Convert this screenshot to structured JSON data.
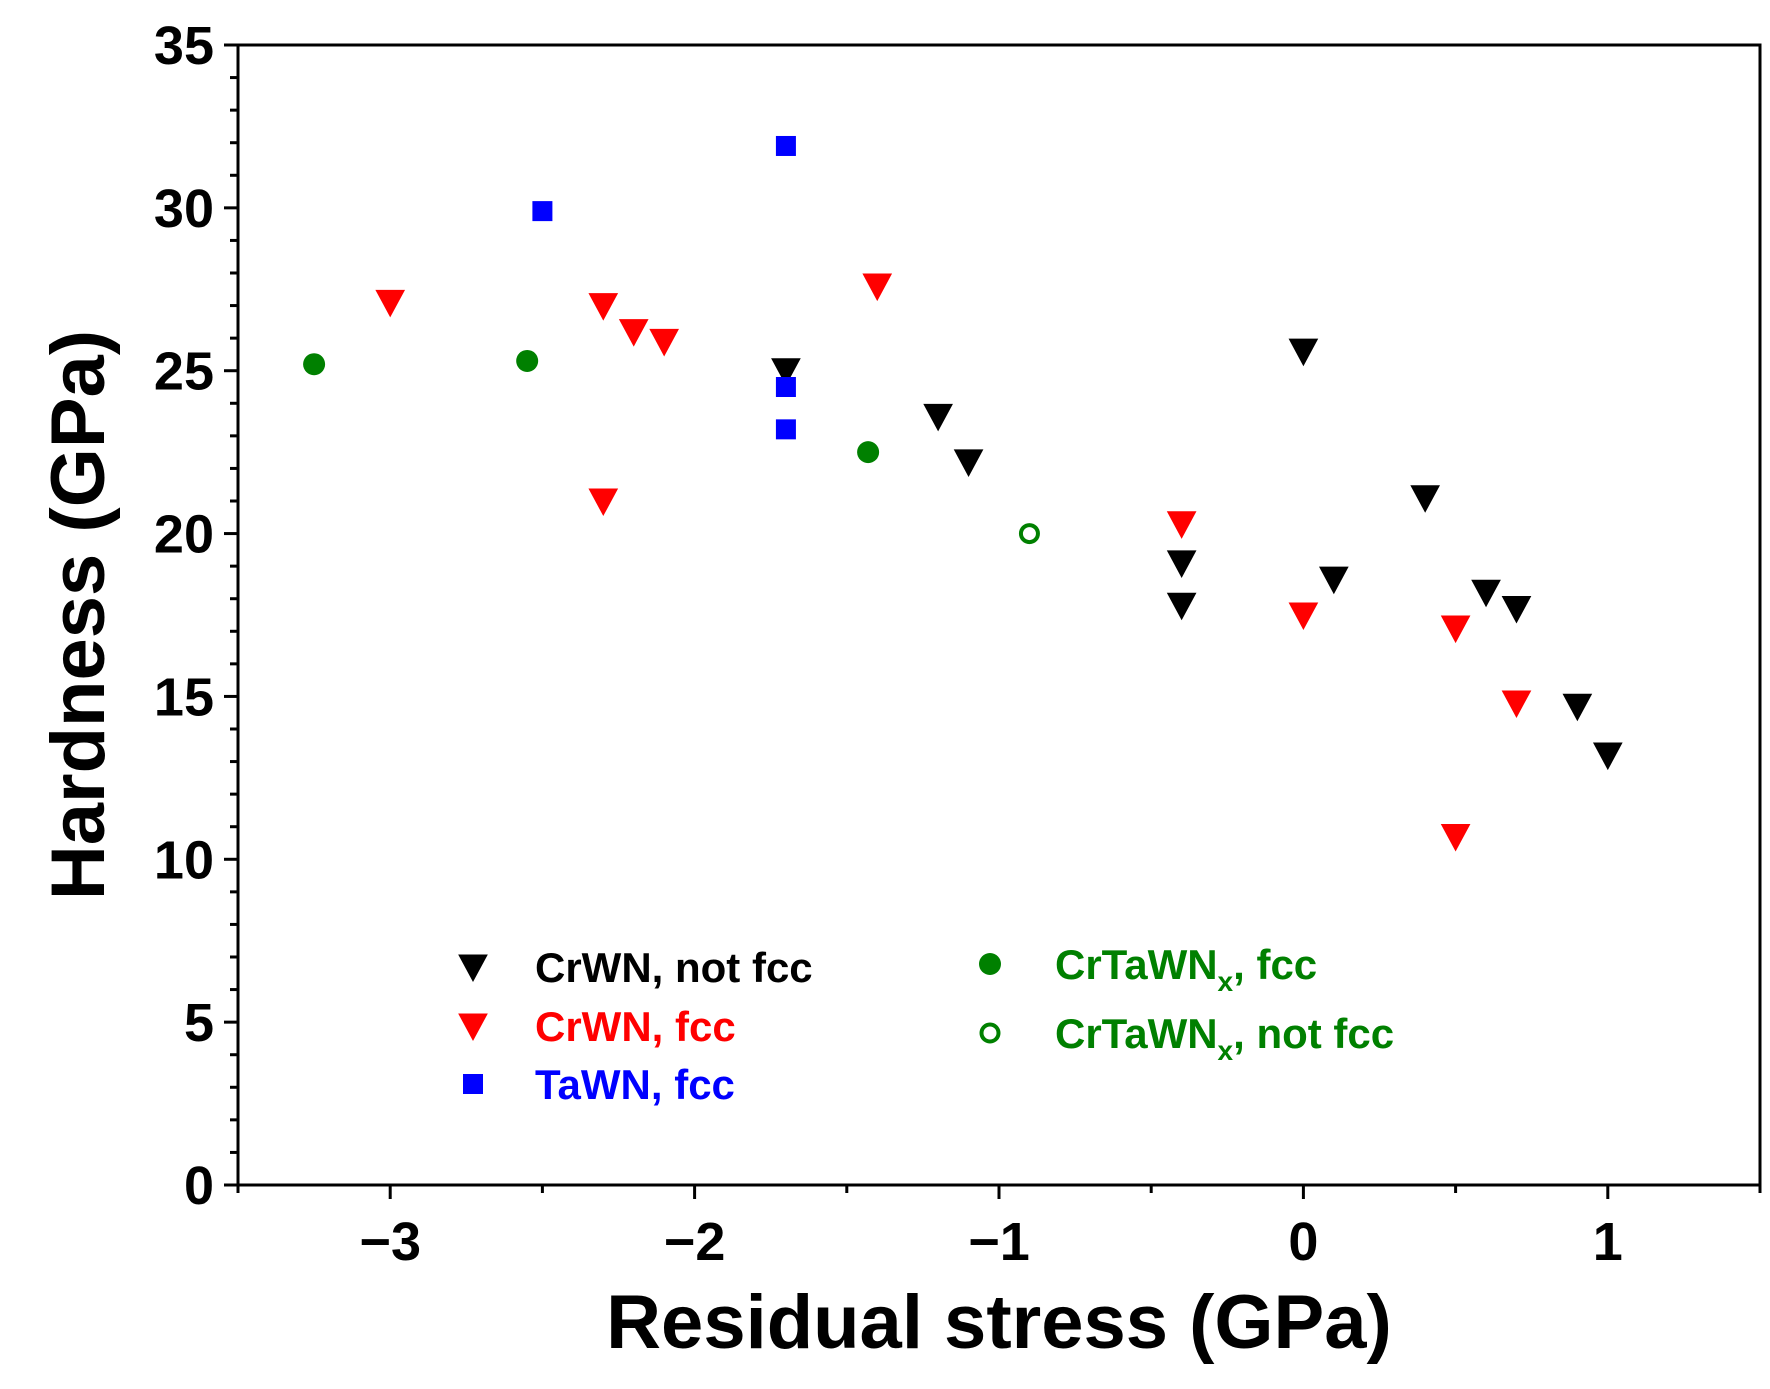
{
  "chart_data": {
    "type": "scatter",
    "title": "",
    "xlabel": "Residual stress (GPa)",
    "ylabel": "Hardness (GPa)",
    "xlim": [
      -3.5,
      1.5
    ],
    "ylim": [
      0,
      35
    ],
    "grid": false,
    "x_ticks": [
      -3,
      -2,
      -1,
      0,
      1
    ],
    "x_tick_labels": [
      "−3",
      "−2",
      "−1",
      "0",
      "1"
    ],
    "y_ticks": [
      0,
      5,
      10,
      15,
      20,
      25,
      30,
      35
    ],
    "y_tick_labels": [
      "0",
      "5",
      "10",
      "15",
      "20",
      "25",
      "30",
      "35"
    ],
    "legend_position": "bottom-center",
    "series": [
      {
        "name": "CrWN, not fcc",
        "label_main": "CrWN, not fcc",
        "label_sub": "",
        "label_rest": "",
        "color": "#000000",
        "marker": "triangle-down",
        "filled": true,
        "points": [
          [
            -1.7,
            25.0
          ],
          [
            -1.2,
            23.6
          ],
          [
            -1.1,
            22.2
          ],
          [
            0.0,
            25.6
          ],
          [
            -0.4,
            19.1
          ],
          [
            -0.4,
            17.8
          ],
          [
            0.1,
            18.6
          ],
          [
            0.4,
            21.1
          ],
          [
            0.6,
            18.2
          ],
          [
            0.7,
            17.7
          ],
          [
            0.9,
            14.7
          ],
          [
            1.0,
            13.2
          ]
        ]
      },
      {
        "name": "CrWN, fcc",
        "label_main": "CrWN, fcc",
        "label_sub": "",
        "label_rest": "",
        "color": "#ff0000",
        "marker": "triangle-down",
        "filled": true,
        "points": [
          [
            -3.0,
            27.1
          ],
          [
            -2.3,
            27.0
          ],
          [
            -2.2,
            26.2
          ],
          [
            -2.1,
            25.9
          ],
          [
            -2.3,
            21.0
          ],
          [
            -1.4,
            27.6
          ],
          [
            -0.4,
            20.3
          ],
          [
            0.0,
            17.5
          ],
          [
            0.5,
            17.1
          ],
          [
            0.7,
            14.8
          ],
          [
            0.5,
            10.7
          ]
        ]
      },
      {
        "name": "TaWN, fcc",
        "label_main": "TaWN, fcc",
        "label_sub": "",
        "label_rest": "",
        "color": "#0000ff",
        "marker": "square",
        "filled": true,
        "points": [
          [
            -2.5,
            29.9
          ],
          [
            -1.7,
            31.9
          ],
          [
            -1.7,
            24.5
          ],
          [
            -1.7,
            23.2
          ]
        ]
      },
      {
        "name": "CrTaWNx, fcc",
        "label_main": "CrTaWN",
        "label_sub": "x",
        "label_rest": ", fcc",
        "color": "#008000",
        "marker": "circle",
        "filled": true,
        "points": [
          [
            -3.25,
            25.2
          ],
          [
            -2.55,
            25.3
          ],
          [
            -1.43,
            22.5
          ]
        ]
      },
      {
        "name": "CrTaWNx, not fcc",
        "label_main": "CrTaWN",
        "label_sub": "x",
        "label_rest": ", not fcc",
        "color": "#008000",
        "marker": "circle",
        "filled": false,
        "points": [
          [
            -0.9,
            20.0
          ]
        ]
      }
    ]
  }
}
